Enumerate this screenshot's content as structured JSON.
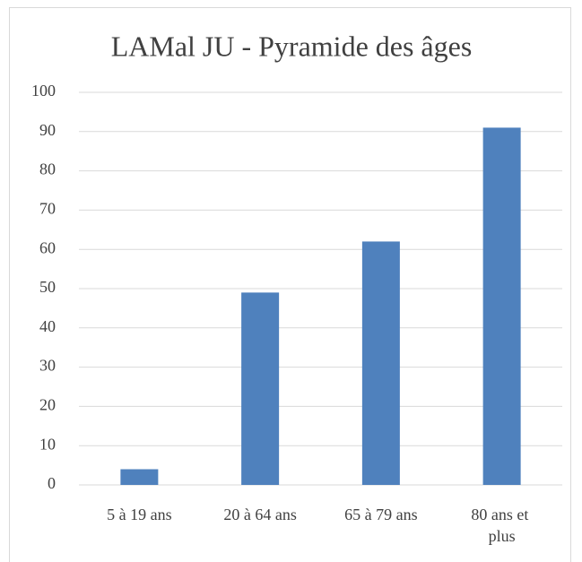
{
  "chart_data": {
    "type": "bar",
    "title": "LAMal JU - Pyramide des âges",
    "categories": [
      "5 à 19 ans",
      "20 à 64 ans",
      "65 à 79 ans",
      "80 ans et plus"
    ],
    "values": [
      4,
      49,
      62,
      91
    ],
    "color": "#4f81bd",
    "ylim": [
      0,
      100
    ],
    "yticks": [
      0,
      10,
      20,
      30,
      40,
      50,
      60,
      70,
      80,
      90,
      100
    ],
    "grid": true
  }
}
